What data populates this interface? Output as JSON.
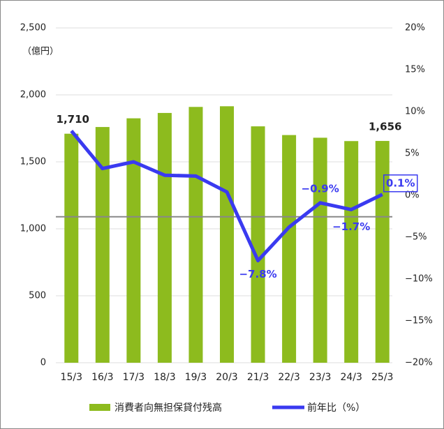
{
  "chart_data": {
    "type": "bar_line",
    "y_axis_title": "（億円）",
    "categories": [
      "15/3",
      "16/3",
      "17/3",
      "18/3",
      "19/3",
      "20/3",
      "21/3",
      "22/3",
      "23/3",
      "24/3",
      "25/3"
    ],
    "series": [
      {
        "name": "消費者向無担保貸付残高",
        "type": "bar",
        "color": "#8dbb1e",
        "axis": "y",
        "values": [
          1710,
          1760,
          1825,
          1865,
          1910,
          1915,
          1765,
          1700,
          1680,
          1655,
          1656
        ],
        "value_labels": [
          "1,710",
          null,
          null,
          null,
          null,
          null,
          null,
          null,
          null,
          null,
          "1,656"
        ]
      },
      {
        "name": "前年比（%）",
        "type": "line",
        "color": "#3a3af0",
        "axis": "y2",
        "values": [
          7.7,
          3.2,
          4.0,
          2.4,
          2.3,
          0.4,
          -7.8,
          -3.8,
          -0.9,
          -1.7,
          0.1
        ],
        "value_labels": [
          null,
          null,
          null,
          null,
          null,
          null,
          "−7.8%",
          null,
          "−0.9%",
          "−1.7%",
          "0.1%"
        ]
      }
    ],
    "ref_line": 1090,
    "ylim": [
      0,
      2500
    ],
    "yticks": [
      0,
      500,
      {
        "value": 1000,
        "label": "1,000"
      },
      {
        "value": 1500,
        "label": "1,500"
      },
      {
        "value": 2000,
        "label": "2,000"
      },
      {
        "value": 2500,
        "label": "2,500"
      }
    ],
    "y2lim": [
      -20,
      20
    ],
    "y2ticks": [
      {
        "value": -20,
        "label": "−20%"
      },
      {
        "value": -15,
        "label": "−15%"
      },
      {
        "value": -10,
        "label": "−10%"
      },
      {
        "value": -5,
        "label": "−5%"
      },
      {
        "value": 0,
        "label": "0%"
      },
      {
        "value": 5,
        "label": "5%"
      },
      {
        "value": 10,
        "label": "10%"
      },
      {
        "value": 15,
        "label": "15%"
      },
      {
        "value": 20,
        "label": "20%"
      }
    ],
    "grid": true,
    "legend": "bottom"
  }
}
